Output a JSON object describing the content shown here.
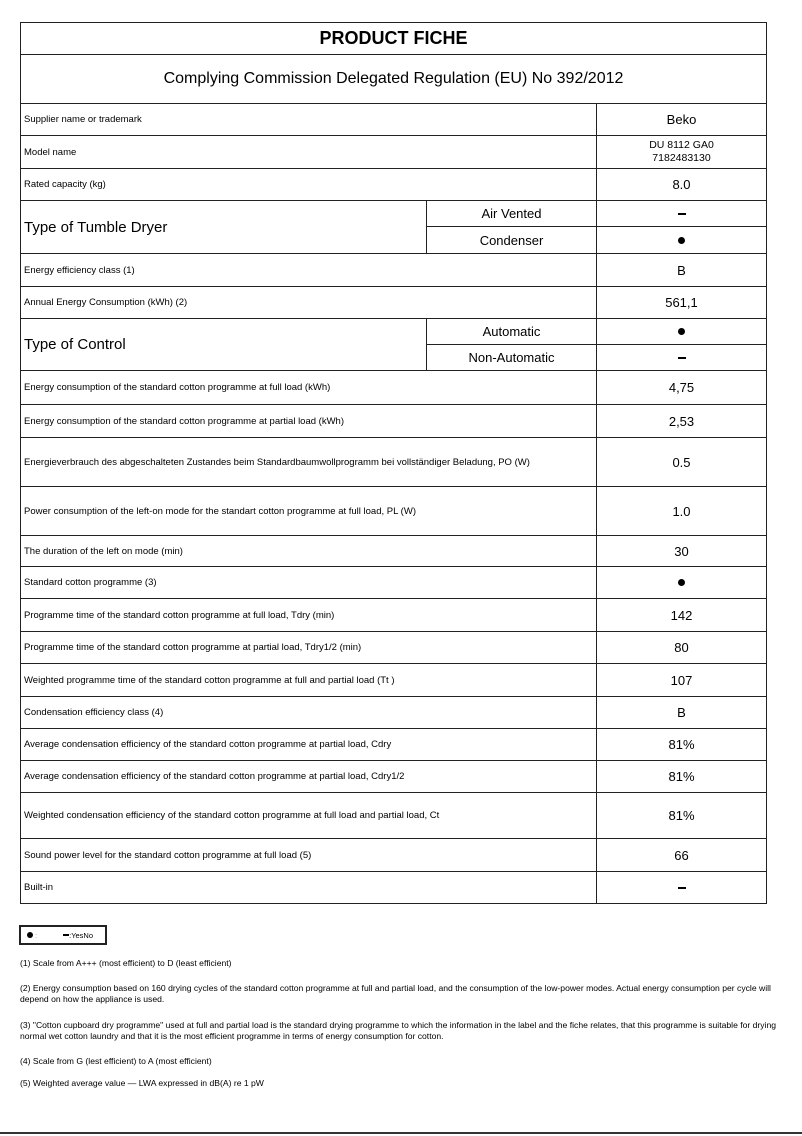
{
  "title": "PRODUCT FICHE",
  "regulation": "Complying Commission Delegated Regulation (EU) No 392/2012",
  "rows": {
    "supplier": {
      "label": "Supplier name or trademark",
      "value": "Beko"
    },
    "model": {
      "label": "Model name",
      "value_line1": "DU 8112 GA0",
      "value_line2": "7182483130"
    },
    "capacity": {
      "label": "Rated capacity (kg)",
      "value": "8.0"
    },
    "dryer_type": {
      "label": "Type of Tumble Dryer",
      "options": [
        {
          "label": "Air Vented",
          "value": "no"
        },
        {
          "label": "Condenser",
          "value": "yes"
        }
      ]
    },
    "energy_class": {
      "label": "Energy efficiency class (1)",
      "value": "B"
    },
    "annual": {
      "label": "Annual Energy Consumption (kWh) (2)",
      "value": "561,1"
    },
    "control": {
      "label": "Type of Control",
      "options": [
        {
          "label": "Automatic",
          "value": "yes"
        },
        {
          "label": "Non-Automatic",
          "value": "no"
        }
      ]
    },
    "full_load": {
      "label": "Energy consumption of the standard cotton programme at full load (kWh)",
      "value": "4,75"
    },
    "partial_load": {
      "label": "Energy consumption of the standard cotton programme at partial load (kWh)",
      "value": "2,53"
    },
    "off_mode": {
      "label": "Energieverbrauch des abgeschalteten Zustandes beim Standardbaumwollprogramm bei vollständiger Beladung, PO (W)",
      "value": "0.5"
    },
    "left_on": {
      "label": "Power consumption of the left-on mode for the standart cotton programme at full load, PL (W)",
      "value": "1.0"
    },
    "left_on_duration": {
      "label": "The duration of the left on mode (min)",
      "value": "30"
    },
    "std_programme": {
      "label": "Standard cotton programme (3)",
      "value": "yes"
    },
    "tdry": {
      "label": "Programme time of the standard cotton programme at full load, Tdry (min)",
      "value": "142"
    },
    "tdry_half": {
      "label": "Programme time of the standard cotton programme at partial load, Tdry1/2 (min)",
      "value": "80"
    },
    "tt": {
      "label": "Weighted programme time of the standard cotton programme at full and partial load (Tt )",
      "value": "107"
    },
    "cond_class": {
      "label": "Condensation efficiency class (4)",
      "value": "B"
    },
    "cdry": {
      "label": "Average condensation efficiency of the standard cotton programme at partial load, Cdry",
      "value": "81%"
    },
    "cdry_half": {
      "label": "Average condensation efficiency of the standard cotton programme at partial load, Cdry1/2",
      "value": "81%"
    },
    "ct": {
      "label": "Weighted condensation efficiency of the standard cotton programme at full load and partial load, Ct",
      "value": "81%"
    },
    "sound": {
      "label": "Sound power level for the standard cotton programme at full load (5)",
      "value": "66"
    },
    "built_in": {
      "label": "Built-in",
      "value": "no"
    }
  },
  "legend": {
    "yes_sep": ":",
    "no_sep": ":",
    "text": "YesNo"
  },
  "footnotes": [
    "(1) Scale from A+++ (most efficient) to D (least efficient)",
    "(2) Energy consumption based on 160 drying cycles of the standard cotton programme at full and partial load, and the consumption of the low-power modes. Actual energy consumption per cycle will depend on how the appliance is used.",
    "(3) \"Cotton cupboard dry programme\" used at full and partial load is the standard drying programme to which the information  in the label and the fiche relates, that this programme is suitable for drying normal wet cotton laundry and that it is the most efficient programme in terms of energy consumption for cotton.",
    "(4) Scale from G (lest efficient) to A (most efficient)",
    "(5) Weighted average value — LWA    expressed in dB(A) re 1 pW"
  ]
}
